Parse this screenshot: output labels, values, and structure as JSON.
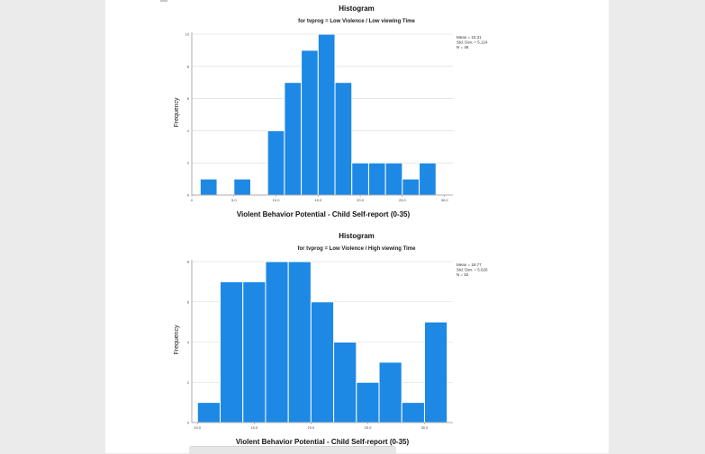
{
  "colors": {
    "bar": "#1e88e5",
    "bar_edge": "#ffffff",
    "grid": "#d8d8d8",
    "axis": "#9a9a9a"
  },
  "chart_data": [
    {
      "type": "bar",
      "title": "Histogram",
      "subtitle": "for tvprog = Low Violence / Low viewing Time",
      "xlabel": "Violent Behavior Potential - Child Self-report (0-35)",
      "ylabel": "Frequency",
      "xlim": [
        0,
        31
      ],
      "ylim": [
        0,
        10
      ],
      "bin_width": 2,
      "x_ticks": [
        "0",
        "5.0",
        "10.0",
        "15.0",
        "20.0",
        "25.0",
        "30.0"
      ],
      "x_tick_values": [
        0,
        5,
        10,
        15,
        20,
        25,
        30
      ],
      "y_ticks": [
        "0",
        "2",
        "4",
        "6",
        "8",
        "10"
      ],
      "y_tick_values": [
        0,
        2,
        4,
        6,
        8,
        10
      ],
      "bins": [
        {
          "x0": 1,
          "x1": 3,
          "count": 1
        },
        {
          "x0": 3,
          "x1": 5,
          "count": 0
        },
        {
          "x0": 5,
          "x1": 7,
          "count": 1
        },
        {
          "x0": 7,
          "x1": 9,
          "count": 0
        },
        {
          "x0": 9,
          "x1": 11,
          "count": 4
        },
        {
          "x0": 11,
          "x1": 13,
          "count": 7
        },
        {
          "x0": 13,
          "x1": 15,
          "count": 9
        },
        {
          "x0": 15,
          "x1": 17,
          "count": 10
        },
        {
          "x0": 17,
          "x1": 19,
          "count": 7
        },
        {
          "x0": 19,
          "x1": 21,
          "count": 2
        },
        {
          "x0": 21,
          "x1": 23,
          "count": 2
        },
        {
          "x0": 23,
          "x1": 25,
          "count": 2
        },
        {
          "x0": 25,
          "x1": 27,
          "count": 1
        },
        {
          "x0": 27,
          "x1": 29,
          "count": 2
        }
      ],
      "stats": [
        "Mean = 15.31",
        "Std. Dev. = 5.124",
        "N = 48"
      ]
    },
    {
      "type": "bar",
      "title": "Histogram",
      "subtitle": "for tvprog = Low Violence / High viewing Time",
      "xlabel": "Violent Behavior Potential - Child Self-report (0-35)",
      "ylabel": "Frequency",
      "xlim": [
        9.5,
        32.5
      ],
      "ylim": [
        0,
        8
      ],
      "bin_width": 2,
      "x_ticks": [
        "10.0",
        "15.0",
        "20.0",
        "25.0",
        "30.0"
      ],
      "x_tick_values": [
        10,
        15,
        20,
        25,
        30
      ],
      "y_ticks": [
        "0",
        "2",
        "4",
        "6",
        "8"
      ],
      "y_tick_values": [
        0,
        2,
        4,
        6,
        8
      ],
      "bins": [
        {
          "x0": 10,
          "x1": 12,
          "count": 1
        },
        {
          "x0": 12,
          "x1": 14,
          "count": 7
        },
        {
          "x0": 14,
          "x1": 16,
          "count": 7
        },
        {
          "x0": 16,
          "x1": 18,
          "count": 8
        },
        {
          "x0": 18,
          "x1": 20,
          "count": 8
        },
        {
          "x0": 20,
          "x1": 22,
          "count": 6
        },
        {
          "x0": 22,
          "x1": 24,
          "count": 4
        },
        {
          "x0": 24,
          "x1": 26,
          "count": 2
        },
        {
          "x0": 26,
          "x1": 28,
          "count": 3
        },
        {
          "x0": 28,
          "x1": 30,
          "count": 1
        },
        {
          "x0": 30,
          "x1": 32,
          "count": 5
        }
      ],
      "stats": [
        "Mean = 19.77",
        "Std. Dev. = 5.626",
        "N = 52"
      ]
    }
  ]
}
